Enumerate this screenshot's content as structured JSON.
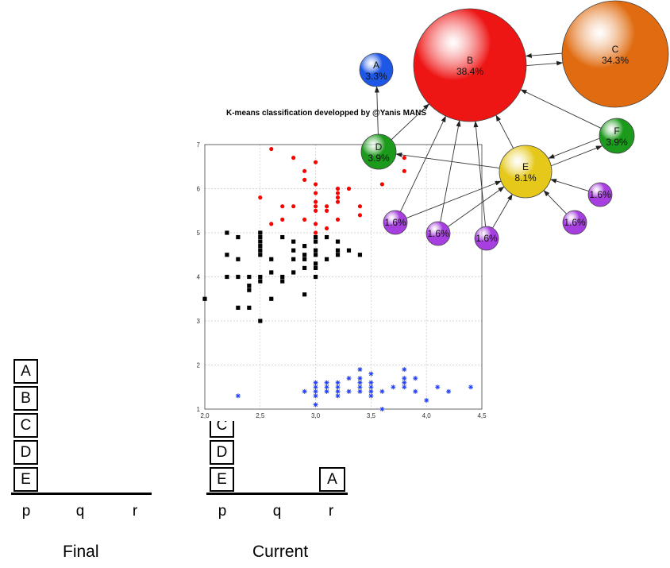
{
  "blocks_world": {
    "final": {
      "caption": "Final",
      "pegs": [
        "p",
        "q",
        "r"
      ],
      "stack_p": [
        "A",
        "B",
        "C",
        "D",
        "E"
      ]
    },
    "current": {
      "caption": "Current",
      "pegs": [
        "p",
        "q",
        "r"
      ],
      "stack_p": [
        "C",
        "D",
        "E"
      ],
      "stack_r": [
        "A"
      ]
    }
  },
  "chart_data": {
    "type": "scatter",
    "title": "K-means classification developped by @Yanis MANS",
    "xlim": [
      2.0,
      4.5
    ],
    "ylim": [
      1,
      7
    ],
    "xticks": [
      "2,0",
      "2,5",
      "3,0",
      "3,5",
      "4,0",
      "4,5"
    ],
    "yticks": [
      "1",
      "2",
      "3",
      "4",
      "5",
      "6",
      "7"
    ],
    "grid": true,
    "series": [
      {
        "color": "#ff0000",
        "marker": "circle",
        "points": [
          [
            2.6,
            6.9
          ],
          [
            2.8,
            6.7
          ],
          [
            3.0,
            6.6
          ],
          [
            2.9,
            6.4
          ],
          [
            3.8,
            6.7
          ],
          [
            3.8,
            6.4
          ],
          [
            2.9,
            6.2
          ],
          [
            3.2,
            6.0
          ],
          [
            3.3,
            6.0
          ],
          [
            3.0,
            6.1
          ],
          [
            3.6,
            6.1
          ],
          [
            2.5,
            5.8
          ],
          [
            3.0,
            5.9
          ],
          [
            3.2,
            5.9
          ],
          [
            3.2,
            5.8
          ],
          [
            3.1,
            5.6
          ],
          [
            3.0,
            5.7
          ],
          [
            3.1,
            5.5
          ],
          [
            3.4,
            5.6
          ],
          [
            3.2,
            5.7
          ],
          [
            2.7,
            5.6
          ],
          [
            2.8,
            5.6
          ],
          [
            3.0,
            5.6
          ],
          [
            2.9,
            5.3
          ],
          [
            2.7,
            5.3
          ],
          [
            3.0,
            5.5
          ],
          [
            3.2,
            5.3
          ],
          [
            2.6,
            5.2
          ],
          [
            3.0,
            5.2
          ],
          [
            3.1,
            5.1
          ],
          [
            3.4,
            5.4
          ],
          [
            2.5,
            5.0
          ],
          [
            3.0,
            5.0
          ]
        ]
      },
      {
        "color": "#000000",
        "marker": "square",
        "points": [
          [
            2.2,
            5.0
          ],
          [
            2.3,
            4.9
          ],
          [
            2.5,
            5.0
          ],
          [
            2.5,
            4.9
          ],
          [
            2.7,
            4.9
          ],
          [
            2.8,
            4.8
          ],
          [
            2.9,
            4.7
          ],
          [
            3.0,
            4.9
          ],
          [
            3.0,
            4.8
          ],
          [
            3.1,
            4.9
          ],
          [
            3.2,
            4.8
          ],
          [
            2.8,
            4.6
          ],
          [
            2.9,
            4.5
          ],
          [
            3.0,
            4.6
          ],
          [
            3.2,
            4.6
          ],
          [
            3.3,
            4.6
          ],
          [
            3.0,
            4.5
          ],
          [
            3.1,
            4.4
          ],
          [
            2.9,
            4.4
          ],
          [
            2.2,
            4.5
          ],
          [
            2.3,
            4.4
          ],
          [
            2.6,
            4.4
          ],
          [
            2.5,
            4.5
          ],
          [
            2.8,
            4.4
          ],
          [
            3.0,
            4.3
          ],
          [
            3.2,
            4.5
          ],
          [
            3.4,
            4.5
          ],
          [
            2.9,
            4.2
          ],
          [
            3.0,
            4.2
          ],
          [
            2.8,
            4.1
          ],
          [
            2.7,
            4.0
          ],
          [
            2.5,
            4.0
          ],
          [
            2.6,
            4.1
          ],
          [
            2.2,
            4.0
          ],
          [
            2.4,
            4.0
          ],
          [
            2.3,
            4.0
          ],
          [
            2.4,
            3.8
          ],
          [
            2.4,
            3.7
          ],
          [
            2.5,
            3.9
          ],
          [
            2.6,
            3.5
          ],
          [
            2.9,
            3.6
          ],
          [
            2.7,
            3.9
          ],
          [
            2.0,
            3.5
          ],
          [
            2.3,
            3.3
          ],
          [
            2.4,
            3.3
          ],
          [
            2.5,
            3.0
          ],
          [
            3.0,
            4.0
          ],
          [
            2.5,
            4.8
          ],
          [
            2.5,
            4.7
          ],
          [
            2.5,
            4.6
          ]
        ]
      },
      {
        "color": "#1f3fff",
        "marker": "asterisk",
        "points": [
          [
            2.3,
            1.3
          ],
          [
            2.9,
            1.4
          ],
          [
            3.0,
            1.4
          ],
          [
            3.0,
            1.5
          ],
          [
            3.0,
            1.6
          ],
          [
            3.0,
            1.3
          ],
          [
            3.0,
            1.1
          ],
          [
            3.1,
            1.5
          ],
          [
            3.1,
            1.6
          ],
          [
            3.1,
            1.4
          ],
          [
            3.2,
            1.4
          ],
          [
            3.2,
            1.3
          ],
          [
            3.2,
            1.5
          ],
          [
            3.2,
            1.6
          ],
          [
            3.3,
            1.7
          ],
          [
            3.3,
            1.4
          ],
          [
            3.4,
            1.5
          ],
          [
            3.4,
            1.6
          ],
          [
            3.4,
            1.7
          ],
          [
            3.4,
            1.9
          ],
          [
            3.4,
            1.4
          ],
          [
            3.5,
            1.4
          ],
          [
            3.5,
            1.5
          ],
          [
            3.5,
            1.6
          ],
          [
            3.5,
            1.3
          ],
          [
            3.5,
            1.8
          ],
          [
            3.6,
            1.4
          ],
          [
            3.7,
            1.5
          ],
          [
            3.8,
            1.5
          ],
          [
            3.8,
            1.6
          ],
          [
            3.8,
            1.7
          ],
          [
            3.8,
            1.9
          ],
          [
            3.9,
            1.7
          ],
          [
            3.9,
            1.4
          ],
          [
            4.0,
            1.2
          ],
          [
            4.1,
            1.5
          ],
          [
            4.2,
            1.4
          ],
          [
            4.4,
            1.5
          ],
          [
            3.6,
            1.0
          ]
        ]
      }
    ]
  },
  "cluster_graph": {
    "nodes": [
      {
        "id": "A",
        "pct": "3.3%",
        "color": "#1e57e6"
      },
      {
        "id": "B",
        "pct": "38.4%",
        "color": "#ee1515"
      },
      {
        "id": "C",
        "pct": "34.3%",
        "color": "#e06b10"
      },
      {
        "id": "D",
        "pct": "3.9%",
        "color": "#1c9a1c"
      },
      {
        "id": "E",
        "pct": "8.1%",
        "color": "#e5c81a"
      },
      {
        "id": "F",
        "pct": "3.9%",
        "color": "#1c9a1c"
      },
      {
        "id": "",
        "pct": "1.6%",
        "color": "#a73fe0"
      },
      {
        "id": "",
        "pct": "1.6%",
        "color": "#a73fe0"
      },
      {
        "id": "",
        "pct": "1.6%",
        "color": "#a73fe0"
      },
      {
        "id": "",
        "pct": "1.6%",
        "color": "#a73fe0"
      },
      {
        "id": "",
        "pct": "1.6%",
        "color": "#a73fe0"
      }
    ]
  }
}
